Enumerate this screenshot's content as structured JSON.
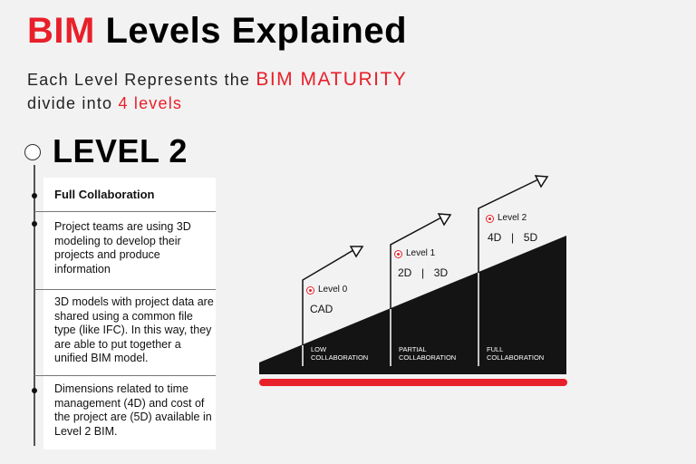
{
  "header": {
    "title_accent": "BIM",
    "title_rest": "Levels Explained",
    "subtitle_line1_prefix": "Each Level Represents the",
    "subtitle_line1_accent": "BIM MATURITY",
    "subtitle_line2_prefix": "divide into",
    "subtitle_line2_accent": "4 levels"
  },
  "section": {
    "heading": "LEVEL 2",
    "items": [
      {
        "text": "Full Collaboration"
      },
      {
        "text": "Project teams are using 3D modeling to develop their projects and produce information"
      },
      {
        "text": "3D models with project data are shared using a common file type (like IFC). In this way, they are able to put together a unified BIM model."
      },
      {
        "text": "Dimensions related to time management (4D) and cost of the project are (5D) available in Level 2 BIM."
      }
    ]
  },
  "diagram": {
    "levels": [
      {
        "label": "Level 0",
        "dims": "CAD",
        "bar_line1": "LOW",
        "bar_line2": "COLLABORATION"
      },
      {
        "label": "Level 1",
        "dims": "2D  |  3D",
        "bar_line1": "PARTIAL",
        "bar_line2": "COLLABORATION"
      },
      {
        "label": "Level 2",
        "dims": "4D  |  5D",
        "bar_line1": "FULL",
        "bar_line2": "COLLABORATION"
      }
    ],
    "colors": {
      "accent": "#e8202a",
      "ramp": "#141414",
      "base_bar": "#e8202a"
    }
  }
}
